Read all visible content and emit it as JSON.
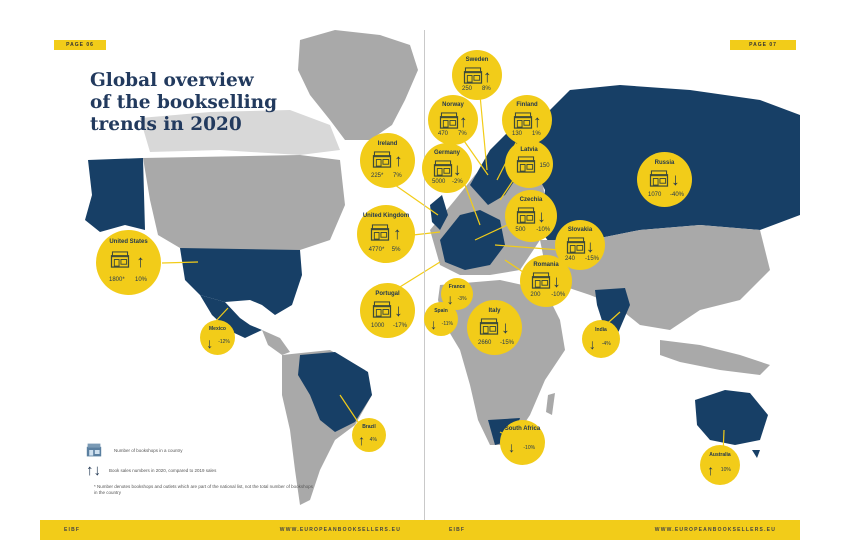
{
  "header": {
    "left_page_tag": "PAGE 06",
    "right_page_tag": "PAGE 07",
    "title_lines": [
      "Global overview",
      "of the bookselling",
      "trends in 2020"
    ]
  },
  "colors": {
    "accent_yellow": "#f2cc19",
    "highlight_navy": "#173f66",
    "other_gray": "#a9a9a9",
    "title_navy": "#223a5e"
  },
  "countries": [
    {
      "name": "Sweden",
      "bookshops": "250",
      "change": "8%",
      "direction": "up"
    },
    {
      "name": "Norway",
      "bookshops": "470",
      "change": "7%",
      "direction": "up"
    },
    {
      "name": "Finland",
      "bookshops": "130",
      "change": "1%",
      "direction": "up"
    },
    {
      "name": "Ireland",
      "bookshops": "225*",
      "change": "7%",
      "direction": "up"
    },
    {
      "name": "Germany",
      "bookshops": "5000",
      "change": "-2%",
      "direction": "down"
    },
    {
      "name": "Latvia",
      "bookshops": "150",
      "change": "",
      "direction": "none"
    },
    {
      "name": "Russia",
      "bookshops": "1070",
      "change": "-40%",
      "direction": "down"
    },
    {
      "name": "Czechia",
      "bookshops": "500",
      "change": "-10%",
      "direction": "down"
    },
    {
      "name": "United Kingdom",
      "bookshops": "4770*",
      "change": "5%",
      "direction": "up"
    },
    {
      "name": "Slovakia",
      "bookshops": "240",
      "change": "-15%",
      "direction": "down"
    },
    {
      "name": "United States",
      "bookshops": "1800*",
      "change": "10%",
      "direction": "up"
    },
    {
      "name": "Romania",
      "bookshops": "200",
      "change": "-10%",
      "direction": "down"
    },
    {
      "name": "France",
      "bookshops": "",
      "change": "-3%",
      "direction": "down"
    },
    {
      "name": "Portugal",
      "bookshops": "1000",
      "change": "-17%",
      "direction": "down"
    },
    {
      "name": "Spain",
      "bookshops": "",
      "change": "-11%",
      "direction": "down"
    },
    {
      "name": "Italy",
      "bookshops": "2660",
      "change": "-15%",
      "direction": "down"
    },
    {
      "name": "Mexico",
      "bookshops": "",
      "change": "-12%",
      "direction": "down"
    },
    {
      "name": "India",
      "bookshops": "",
      "change": "-4%",
      "direction": "down"
    },
    {
      "name": "Brazil",
      "bookshops": "",
      "change": "4%",
      "direction": "up"
    },
    {
      "name": "South Africa",
      "bookshops": "",
      "change": "-10%",
      "direction": "down"
    },
    {
      "name": "Australia",
      "bookshops": "",
      "change": "10%",
      "direction": "up"
    }
  ],
  "arrows": {
    "up": "↑",
    "down": "↓",
    "none": ""
  },
  "legend": {
    "bookshops_label": "Number of bookshops in a country",
    "sales_label": "Book sales numbers in 2020, compared to 2019 sales",
    "note": "* Number denotes bookshops and outlets which are part of the national list, not the total number of bookshops in the country"
  },
  "footer": {
    "left_brand": "EIBF",
    "left_url": "WWW.EUROPEANBOOKSELLERS.EU",
    "right_brand": "EIBF",
    "right_url": "WWW.EUROPEANBOOKSELLERS.EU"
  }
}
